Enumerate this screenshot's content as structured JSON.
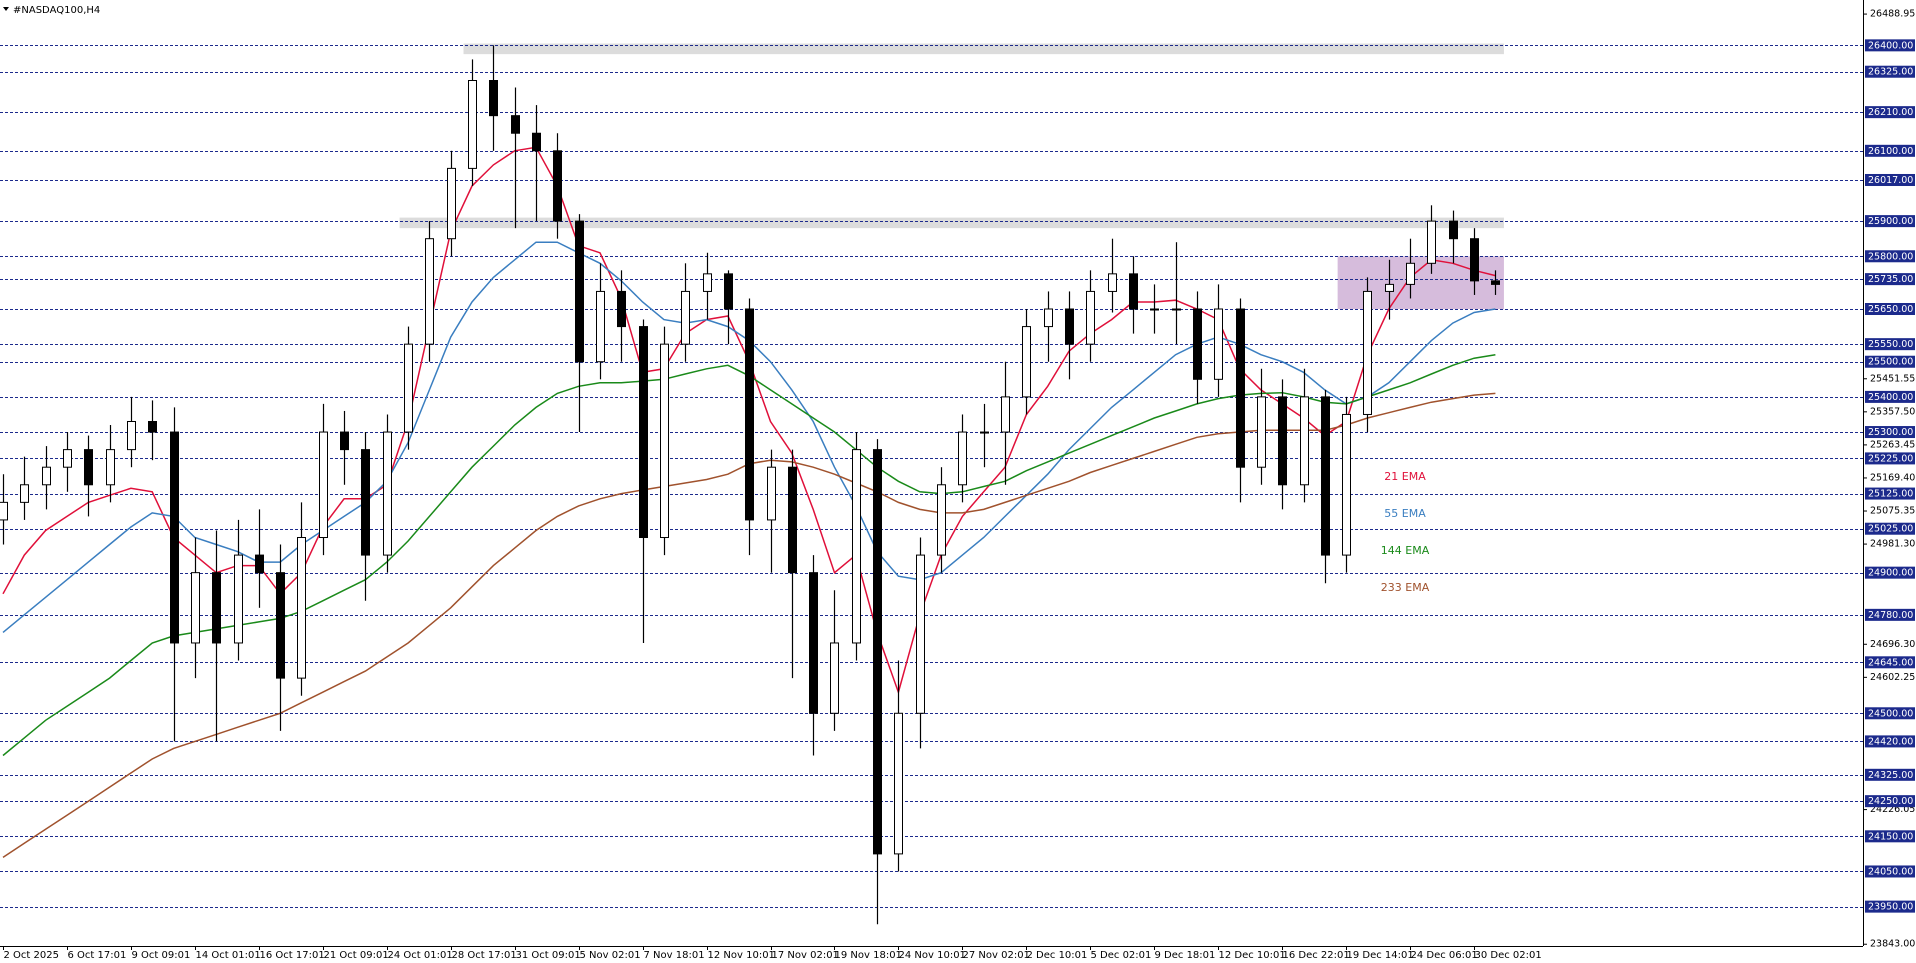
{
  "chart_data": {
    "type": "candlestick",
    "title": "#NASDAQ100,H4",
    "categories": [
      "2 Oct 2025",
      null,
      null,
      "6 Oct 17:01",
      null,
      null,
      "9 Oct 09:01",
      null,
      null,
      "14 Oct 01:01",
      null,
      null,
      "16 Oct 17:01",
      null,
      null,
      "21 Oct 09:01",
      null,
      null,
      "24 Oct 01:01",
      null,
      null,
      "28 Oct 17:01",
      null,
      null,
      "31 Oct 09:01",
      null,
      null,
      "5 Nov 02:01",
      null,
      null,
      "7 Nov 18:01",
      null,
      null,
      "12 Nov 10:01",
      null,
      null,
      "17 Nov 02:01",
      null,
      null,
      "19 Nov 18:01",
      null,
      null,
      "24 Nov 10:01",
      null,
      null,
      "27 Nov 02:01",
      null,
      null,
      "2 Dec 10:01",
      null,
      null,
      "5 Dec 02:01",
      null,
      null,
      "9 Dec 18:01",
      null,
      null,
      "12 Dec 10:01",
      null,
      null,
      "16 Dec 22:01",
      null,
      null,
      "19 Dec 14:01",
      null,
      null,
      "24 Dec 06:01",
      null,
      null,
      "30 Dec 02:01",
      null
    ],
    "open": [
      25050,
      25100,
      25150,
      25200,
      25250,
      25150,
      25250,
      25330,
      25300,
      24700,
      24900,
      24700,
      24950,
      24900,
      24600,
      25000,
      25300,
      25250,
      24950,
      25300,
      25550,
      25850,
      26050,
      26300,
      26200,
      26150,
      26100,
      25900,
      25500,
      25700,
      25600,
      25000,
      25550,
      25700,
      25750,
      25650,
      25050,
      25200,
      24900,
      24500,
      24700,
      25250,
      24100,
      24500,
      24950,
      25150,
      25300,
      25300,
      25400,
      25600,
      25650,
      25550,
      25700,
      25750,
      25650,
      25650,
      25650,
      25450,
      25650,
      25200,
      25400,
      25150,
      25400,
      24950,
      25350,
      25700,
      25720,
      25780,
      25900,
      25850,
      25730
    ],
    "high": [
      25180,
      25230,
      25260,
      25300,
      25290,
      25320,
      25400,
      25390,
      25370,
      25000,
      25020,
      25050,
      25080,
      24980,
      25100,
      25380,
      25360,
      25300,
      25350,
      25600,
      25900,
      26100,
      26360,
      26400,
      26280,
      26230,
      26150,
      25920,
      25780,
      25760,
      25620,
      25600,
      25780,
      25810,
      25760,
      25680,
      25250,
      25250,
      24950,
      24850,
      25300,
      25280,
      24650,
      25000,
      25200,
      25350,
      25380,
      25500,
      25650,
      25700,
      25700,
      25760,
      25850,
      25800,
      25720,
      25840,
      25700,
      25720,
      25680,
      25480,
      25450,
      25480,
      25420,
      25400,
      25740,
      25790,
      25850,
      25945,
      25930,
      25880,
      25760
    ],
    "low": [
      24980,
      25050,
      25080,
      25130,
      25060,
      25100,
      25200,
      25220,
      24420,
      24600,
      24420,
      24650,
      24800,
      24450,
      24550,
      24950,
      25150,
      24820,
      24900,
      25250,
      25500,
      25800,
      26000,
      26100,
      25880,
      25900,
      25850,
      25300,
      25450,
      25500,
      24700,
      24950,
      25500,
      25620,
      25550,
      24950,
      24900,
      24600,
      24380,
      24450,
      24650,
      23900,
      24050,
      24400,
      24900,
      25100,
      25200,
      25150,
      25350,
      25500,
      25450,
      25500,
      25640,
      25580,
      25580,
      25550,
      25380,
      25400,
      25100,
      25150,
      25080,
      25100,
      24870,
      24900,
      25300,
      25620,
      25680,
      25750,
      25780,
      25690,
      25690
    ],
    "close": [
      25100,
      25150,
      25200,
      25250,
      25150,
      25250,
      25330,
      25300,
      24700,
      24900,
      24700,
      24950,
      24900,
      24600,
      25000,
      25300,
      25250,
      24950,
      25300,
      25550,
      25850,
      26050,
      26300,
      26200,
      26150,
      26100,
      25900,
      25500,
      25700,
      25600,
      25000,
      25550,
      25700,
      25750,
      25650,
      25050,
      25200,
      24900,
      24500,
      24700,
      25250,
      24100,
      24500,
      24950,
      25150,
      25300,
      25300,
      25400,
      25600,
      25650,
      25550,
      25700,
      25750,
      25650,
      25650,
      25650,
      25450,
      25650,
      25200,
      25400,
      25150,
      25400,
      24950,
      25350,
      25700,
      25720,
      25780,
      25900,
      25850,
      25730,
      25720
    ],
    "series": [
      {
        "name": "21 EMA",
        "color": "#e0103a",
        "values": [
          24840,
          24950,
          25020,
          25060,
          25100,
          25120,
          25140,
          25130,
          25000,
          24950,
          24900,
          24920,
          24920,
          24840,
          24900,
          25030,
          25110,
          25110,
          25150,
          25330,
          25600,
          25870,
          26000,
          26060,
          26100,
          26110,
          26000,
          25830,
          25810,
          25680,
          25470,
          25480,
          25580,
          25620,
          25630,
          25500,
          25330,
          25240,
          25080,
          24900,
          24950,
          24730,
          24560,
          24780,
          24950,
          25060,
          25130,
          25200,
          25350,
          25430,
          25530,
          25580,
          25620,
          25670,
          25670,
          25675,
          25650,
          25620,
          25480,
          25420,
          25380,
          25340,
          25290,
          25330,
          25520,
          25650,
          25740,
          25790,
          25780,
          25760,
          25745
        ]
      },
      {
        "name": "55 EMA",
        "color": "#3a7ec0",
        "values": [
          24730,
          24780,
          24830,
          24880,
          24930,
          24980,
          25030,
          25070,
          25060,
          25000,
          24980,
          24960,
          24930,
          24930,
          24980,
          25020,
          25060,
          25100,
          25160,
          25270,
          25420,
          25570,
          25670,
          25740,
          25790,
          25840,
          25840,
          25810,
          25780,
          25730,
          25670,
          25620,
          25610,
          25620,
          25600,
          25560,
          25500,
          25420,
          25330,
          25200,
          25090,
          24960,
          24890,
          24880,
          24900,
          24950,
          25000,
          25060,
          25120,
          25180,
          25250,
          25310,
          25370,
          25420,
          25470,
          25520,
          25550,
          25570,
          25550,
          25520,
          25500,
          25470,
          25420,
          25380,
          25400,
          25440,
          25500,
          25560,
          25610,
          25640,
          25650
        ]
      },
      {
        "name": "144 EMA",
        "color": "#1a8a1a",
        "values": [
          24380,
          24430,
          24480,
          24520,
          24560,
          24600,
          24650,
          24700,
          24720,
          24730,
          24740,
          24750,
          24760,
          24770,
          24790,
          24820,
          24850,
          24880,
          24930,
          24990,
          25060,
          25130,
          25200,
          25260,
          25320,
          25370,
          25410,
          25430,
          25440,
          25440,
          25445,
          25450,
          25465,
          25480,
          25490,
          25460,
          25420,
          25380,
          25340,
          25300,
          25250,
          25200,
          25160,
          25130,
          25125,
          25130,
          25145,
          25160,
          25190,
          25215,
          25240,
          25265,
          25290,
          25315,
          25340,
          25360,
          25380,
          25395,
          25405,
          25410,
          25412,
          25400,
          25385,
          25380,
          25400,
          25420,
          25440,
          25465,
          25490,
          25510,
          25520
        ]
      },
      {
        "name": "233 EMA",
        "color": "#a0522d",
        "values": [
          24090,
          24130,
          24170,
          24210,
          24250,
          24290,
          24330,
          24370,
          24400,
          24420,
          24440,
          24460,
          24480,
          24500,
          24530,
          24560,
          24590,
          24620,
          24660,
          24700,
          24750,
          24800,
          24860,
          24920,
          24970,
          25020,
          25060,
          25090,
          25110,
          25125,
          25135,
          25145,
          25155,
          25165,
          25180,
          25210,
          25220,
          25215,
          25200,
          25180,
          25155,
          25130,
          25100,
          25080,
          25070,
          25070,
          25080,
          25100,
          25120,
          25140,
          25160,
          25185,
          25205,
          25225,
          25245,
          25265,
          25285,
          25295,
          25300,
          25305,
          25305,
          25305,
          25305,
          25320,
          25340,
          25355,
          25370,
          25385,
          25395,
          25405,
          25410
        ]
      }
    ],
    "ylim": [
      23838,
      26529
    ],
    "yticks": [
      {
        "value": 26488.95,
        "label": "26488.95"
      },
      {
        "value": 25451.55,
        "label": "25451.55"
      },
      {
        "value": 25357.5,
        "label": "25357.50"
      },
      {
        "value": 25263.45,
        "label": "25263.45"
      },
      {
        "value": 25169.4,
        "label": "25169.40"
      },
      {
        "value": 25075.35,
        "label": "25075.35"
      },
      {
        "value": 24981.3,
        "label": "24981.30"
      },
      {
        "value": 24696.3,
        "label": "24696.30"
      },
      {
        "value": 24602.25,
        "label": "24602.25"
      },
      {
        "value": 24226.05,
        "label": "24226.05"
      },
      {
        "value": 23843,
        "label": "23843.00"
      }
    ],
    "levels": [
      {
        "value": 26400,
        "label": "26400.00"
      },
      {
        "value": 26325,
        "label": "26325.00"
      },
      {
        "value": 26210,
        "label": "26210.00"
      },
      {
        "value": 26100,
        "label": "26100.00"
      },
      {
        "value": 26017,
        "label": "26017.00"
      },
      {
        "value": 25900,
        "label": "25900.00"
      },
      {
        "value": 25800,
        "label": "25800.00"
      },
      {
        "value": 25735,
        "label": "25735.00"
      },
      {
        "value": 25650,
        "label": "25650.00"
      },
      {
        "value": 25550,
        "label": "25550.00"
      },
      {
        "value": 25500,
        "label": "25500.00"
      },
      {
        "value": 25400,
        "label": "25400.00"
      },
      {
        "value": 25300,
        "label": "25300.00"
      },
      {
        "value": 25225,
        "label": "25225.00"
      },
      {
        "value": 25125,
        "label": "25125.00"
      },
      {
        "value": 25025,
        "label": "25025.00"
      },
      {
        "value": 24900,
        "label": "24900.00"
      },
      {
        "value": 24780,
        "label": "24780.00"
      },
      {
        "value": 24645,
        "label": "24645.00"
      },
      {
        "value": 24500,
        "label": "24500.00"
      },
      {
        "value": 24420,
        "label": "24420.00"
      },
      {
        "value": 24325,
        "label": "24325.00"
      },
      {
        "value": 24250,
        "label": "24250.00"
      },
      {
        "value": 24150,
        "label": "24150.00"
      },
      {
        "value": 24050,
        "label": "24050.00"
      },
      {
        "value": 23950,
        "label": "23950.00"
      }
    ],
    "zones": [
      {
        "low": 26375,
        "high": 26405,
        "start": 22,
        "color": "#d6d6d6"
      },
      {
        "low": 25880,
        "high": 25910,
        "start": 19,
        "color": "#d6d6d6"
      },
      {
        "low": 25650,
        "high": 25800,
        "start": 63,
        "color": "#cfb0d6"
      }
    ],
    "level_color": "#1c2a8c"
  }
}
